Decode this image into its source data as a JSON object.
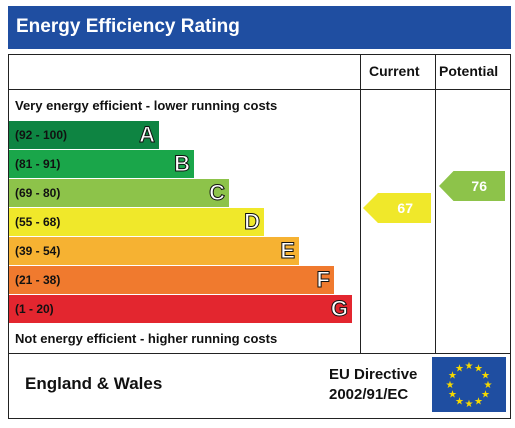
{
  "header": {
    "title": "Energy Efficiency Rating"
  },
  "columns": {
    "current": "Current",
    "potential": "Potential"
  },
  "notes": {
    "top": "Very energy efficient - lower running costs",
    "bottom": "Not energy efficient - higher running costs"
  },
  "bands": [
    {
      "range": "(92 - 100)",
      "letter": "A",
      "color": "#0e8442"
    },
    {
      "range": "(81 - 91)",
      "letter": "B",
      "color": "#1aa64a"
    },
    {
      "range": "(69 - 80)",
      "letter": "C",
      "color": "#8dc34a"
    },
    {
      "range": "(55 - 68)",
      "letter": "D",
      "color": "#f0e82a"
    },
    {
      "range": "(39 - 54)",
      "letter": "E",
      "color": "#f6b232"
    },
    {
      "range": "(21 - 38)",
      "letter": "F",
      "color": "#f07a2e"
    },
    {
      "range": "(1 - 20)",
      "letter": "G",
      "color": "#e3262f"
    }
  ],
  "ratings": {
    "current": {
      "value": "67",
      "color": "#f0e82a"
    },
    "potential": {
      "value": "76",
      "color": "#8dc34a"
    }
  },
  "footer": {
    "region": "England & Wales",
    "directive_line1": "EU Directive",
    "directive_line2": "2002/91/EC"
  },
  "flag": {
    "icon": "eu-flag-icon",
    "color": "#1f4ea1",
    "star_color": "#f5d800"
  }
}
